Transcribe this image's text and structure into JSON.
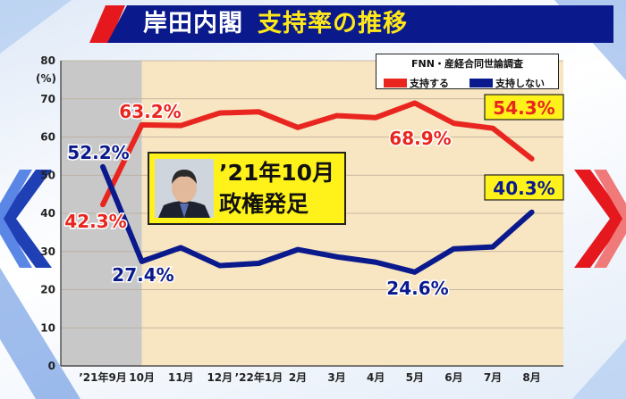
{
  "header": {
    "title_part1": "岸田内閣",
    "title_part2": "支持率の推移"
  },
  "colors": {
    "approve": "#e8261f",
    "disapprove": "#0a1a8c",
    "header_bar": "#0a1a8c",
    "accent_red": "#e5181e",
    "title_yellow": "#ffe81a",
    "plot_bg": "#f8e5c2",
    "grey_period": "#c8c8c8"
  },
  "legend": {
    "source": "FNN・産経合同世論調査",
    "approve_label": "支持する",
    "disapprove_label": "支持しない"
  },
  "event": {
    "line1": "’21年10月",
    "line2": "政権発足"
  },
  "chart_data": {
    "type": "line",
    "categories": [
      "’21年9月",
      "10月",
      "11月",
      "12月",
      "’22年1月",
      "2月",
      "3月",
      "4月",
      "5月",
      "6月",
      "7月",
      "8月"
    ],
    "ylim": [
      0,
      80
    ],
    "yticks": [
      "0",
      "10",
      "20",
      "30",
      "40",
      "50",
      "60",
      "70",
      "80"
    ],
    "ylabel": "(%)",
    "series": [
      {
        "name": "支持する",
        "values": [
          42.3,
          63.2,
          63.0,
          66.3,
          66.6,
          62.5,
          65.6,
          65.1,
          68.9,
          63.6,
          62.3,
          54.3
        ]
      },
      {
        "name": "支持しない",
        "values": [
          52.2,
          27.4,
          31.0,
          26.3,
          26.9,
          30.5,
          28.6,
          27.2,
          24.6,
          30.7,
          31.2,
          40.3
        ]
      }
    ],
    "data_labels": {
      "approve_first": "42.3%",
      "approve_second": "63.2%",
      "approve_peak": "68.9%",
      "approve_last": "54.3%",
      "disapprove_first": "52.2%",
      "disapprove_second": "27.4%",
      "disapprove_low": "24.6%",
      "disapprove_last": "40.3%"
    },
    "grid": true,
    "legend_position": "top-right"
  }
}
